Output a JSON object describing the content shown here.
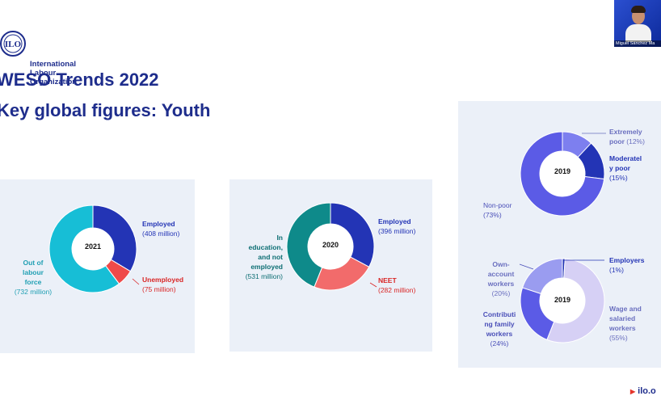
{
  "header": {
    "org_name": "International\nLabour\nOrganization",
    "title_line1": "WESO Trends 2022",
    "title_line2": "Key global figures: Youth"
  },
  "video": {
    "participant_name": "Miguel Sánchez Ma"
  },
  "footer": {
    "url_text": "ilo.o"
  },
  "colors": {
    "title": "#1e2d8c",
    "employed": "#2334b5",
    "unemployed": "#ef4a4a",
    "out_of_labour_force": "#17bed6",
    "neet": "#f26b6b",
    "in_education": "#0e8a8a",
    "extremely_poor": "#7d7fef",
    "moderately_poor": "#2334b5",
    "non_poor": "#5b5be6",
    "employers": "#2334b5",
    "own_account": "#9a9cf0",
    "contributing_family": "#5b5be6",
    "wage_salaried": "#d6d0f5"
  },
  "chart_data": [
    {
      "type": "pie",
      "center_label": "2021",
      "slices": [
        {
          "label": "Employed",
          "value_text": "(408 million)",
          "value": 408
        },
        {
          "label": "Unemployed",
          "value_text": "(75 million)",
          "value": 75
        },
        {
          "label": "Out of labour force",
          "value_text": "(732 million)",
          "value": 732
        }
      ]
    },
    {
      "type": "pie",
      "center_label": "2020",
      "slices": [
        {
          "label": "Employed",
          "value_text": "(396 million)",
          "value": 396
        },
        {
          "label": "NEET",
          "value_text": "(282 million)",
          "value": 282
        },
        {
          "label": "In education, and not employed",
          "value_text": "(531 million)",
          "value": 531
        }
      ]
    },
    {
      "type": "pie",
      "center_label": "2019",
      "slices": [
        {
          "label": "Extremely poor",
          "value_text": "(12%)",
          "value": 12
        },
        {
          "label": "Moderately poor",
          "value_text": "(15%)",
          "value": 15
        },
        {
          "label": "Non-poor",
          "value_text": "(73%)",
          "value": 73
        }
      ]
    },
    {
      "type": "pie",
      "center_label": "2019",
      "slices": [
        {
          "label": "Employers",
          "value_text": "(1%)",
          "value": 1
        },
        {
          "label": "Wage and salaried workers",
          "value_text": "(55%)",
          "value": 55
        },
        {
          "label": "Contributing family workers",
          "value_text": "(24%)",
          "value": 24
        },
        {
          "label": "Own-account workers",
          "value_text": "(20%)",
          "value": 20
        }
      ]
    }
  ],
  "labels": {
    "c1": {
      "employed": "Employed",
      "employed_val": "(408 million)",
      "unemployed": "Unemployed",
      "unemployed_val": "(75 million)",
      "olf_1": "Out of",
      "olf_2": "labour",
      "olf_3": "force",
      "olf_val": "(732 million)"
    },
    "c2": {
      "employed": "Employed",
      "employed_val": "(396 million)",
      "neet": "NEET",
      "neet_val": "(282 million)",
      "edu_1": "In",
      "edu_2": "education,",
      "edu_3": "and not",
      "edu_4": "employed",
      "edu_val": "(531 million)"
    },
    "c3": {
      "ext_1": "Extremely",
      "ext_2": "poor",
      "ext_val": "(12%)",
      "mod_1": "Moderatel",
      "mod_2": "y poor",
      "mod_val": "(15%)",
      "non": "Non-poor",
      "non_val": "(73%)"
    },
    "c4": {
      "emp": "Employers",
      "emp_val": "(1%)",
      "own_1": "Own-",
      "own_2": "account",
      "own_3": "workers",
      "own_val": "(20%)",
      "wage_1": "Wage and",
      "wage_2": "salaried",
      "wage_3": "workers",
      "wage_val": "(55%)",
      "contrib_1": "Contributi",
      "contrib_2": "ng family",
      "contrib_3": "workers",
      "contrib_val": "(24%)"
    }
  }
}
